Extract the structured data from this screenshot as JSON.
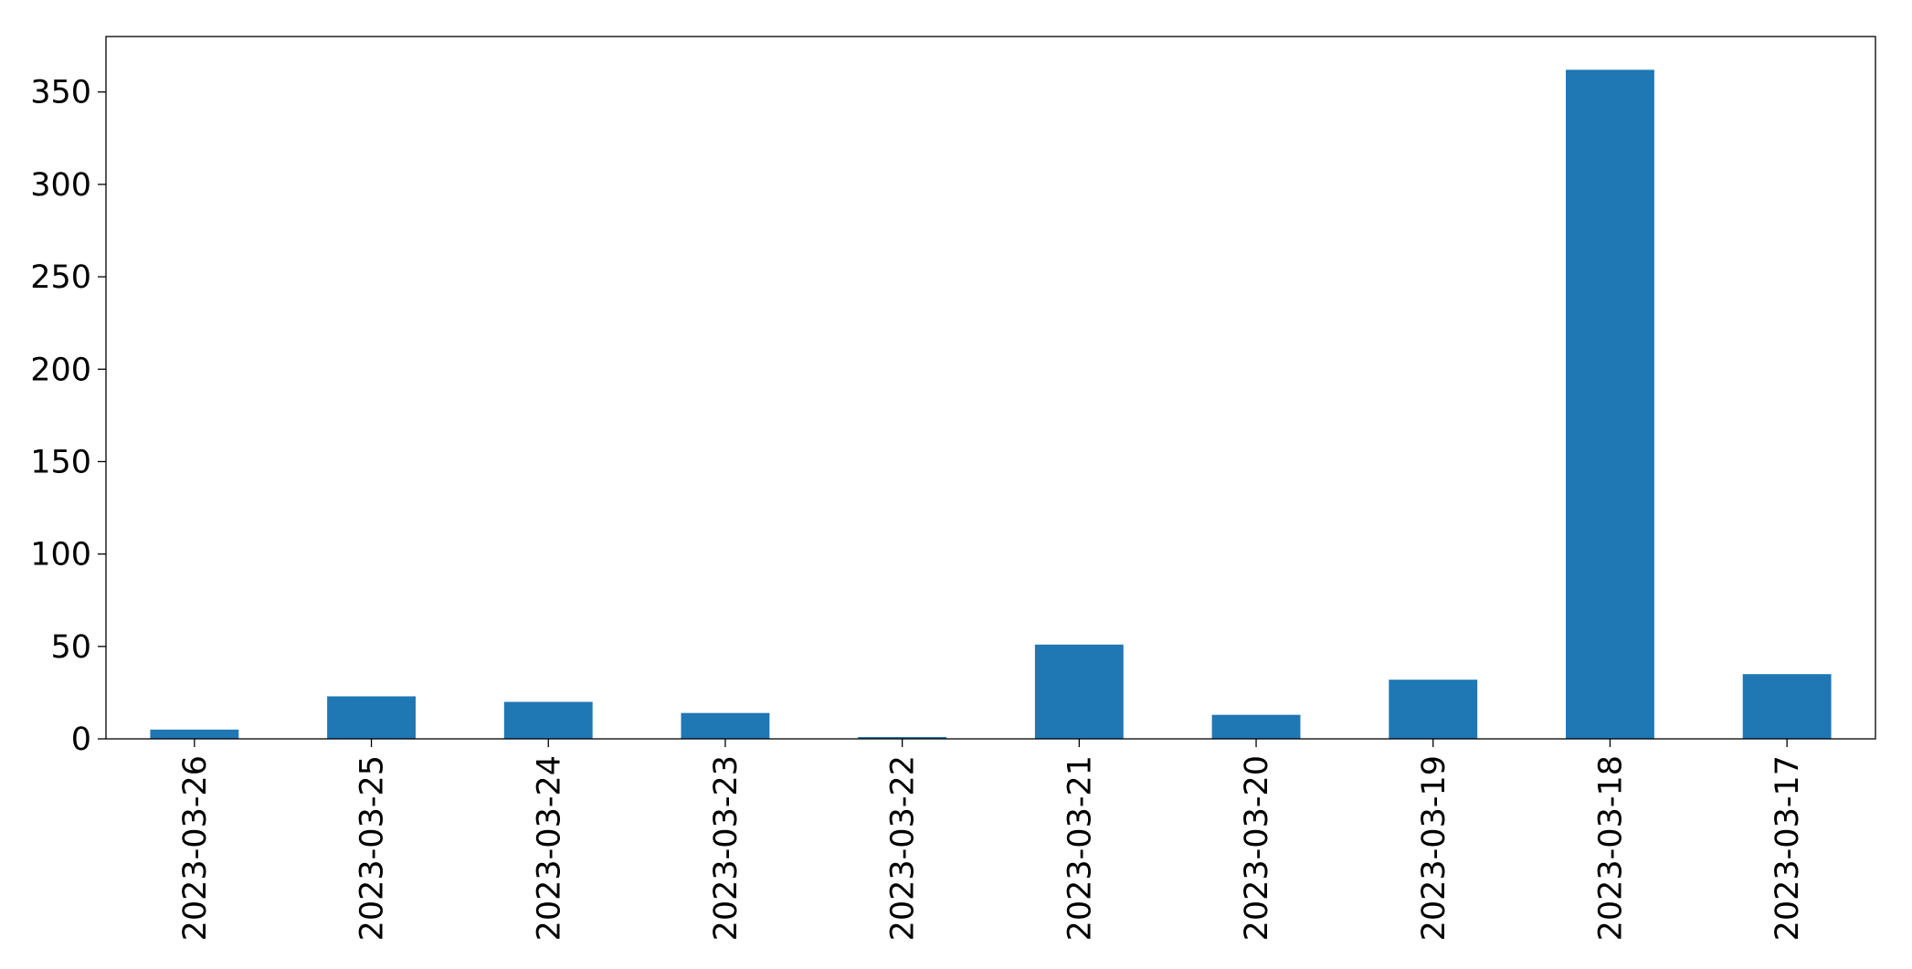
{
  "chart_data": {
    "type": "bar",
    "categories": [
      "2023-03-26",
      "2023-03-25",
      "2023-03-24",
      "2023-03-23",
      "2023-03-22",
      "2023-03-21",
      "2023-03-20",
      "2023-03-19",
      "2023-03-18",
      "2023-03-17"
    ],
    "values": [
      5,
      23,
      20,
      14,
      1,
      51,
      13,
      32,
      362,
      35
    ],
    "color": "#1f77b4",
    "ylim": [
      0,
      380
    ],
    "yticks": [
      0,
      50,
      100,
      150,
      200,
      250,
      300,
      350
    ],
    "grid": false
  }
}
